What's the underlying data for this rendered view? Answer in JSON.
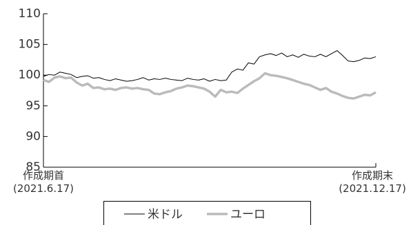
{
  "chart_data": {
    "type": "line",
    "categories": [
      "作成期首\n(2021.6.17)",
      null,
      null,
      null,
      null,
      null,
      null,
      null,
      null,
      null,
      null,
      null,
      null,
      null,
      null,
      null,
      null,
      null,
      null,
      null,
      null,
      null,
      null,
      null,
      null,
      null,
      null,
      null,
      null,
      null,
      null,
      null,
      null,
      null,
      null,
      null,
      null,
      null,
      null,
      null,
      null,
      null,
      null,
      null,
      null,
      null,
      null,
      null,
      null,
      null,
      null,
      null,
      null,
      null,
      null,
      null,
      null,
      null,
      null,
      null,
      "作成期末\n(2021.12.17)"
    ],
    "series": [
      {
        "name": "米ドル",
        "color": "#000000",
        "values": [
          99.8,
          100.1,
          100,
          100.5,
          100.3,
          100.1,
          99.6,
          99.8,
          99.9,
          99.5,
          99.6,
          99.3,
          99.1,
          99.4,
          99.2,
          99.0,
          99.1,
          99.3,
          99.6,
          99.2,
          99.4,
          99.3,
          99.5,
          99.3,
          99.2,
          99.1,
          99.5,
          99.3,
          99.2,
          99.4,
          99.0,
          99.3,
          99.1,
          99.2,
          100.5,
          101,
          100.8,
          102,
          101.8,
          103,
          103.3,
          103.5,
          103.2,
          103.6,
          103.0,
          103.3,
          102.9,
          103.4,
          103.1,
          103.0,
          103.4,
          103.0,
          103.5,
          104,
          103.2,
          102.3,
          102.2,
          102.4,
          102.8,
          102.7,
          103.0
        ]
      },
      {
        "name": "ユーロ",
        "color": "#bbbbbb",
        "values": [
          99.2,
          98.9,
          99.6,
          99.8,
          99.5,
          99.6,
          98.8,
          98.3,
          98.6,
          97.9,
          98.0,
          97.7,
          97.8,
          97.6,
          97.9,
          98.0,
          97.8,
          97.9,
          97.7,
          97.6,
          97.0,
          96.9,
          97.2,
          97.4,
          97.8,
          98.0,
          98.3,
          98.2,
          98.0,
          97.8,
          97.3,
          96.5,
          97.6,
          97.2,
          97.3,
          97.1,
          97.8,
          98.4,
          99.0,
          99.5,
          100.3,
          100.0,
          99.9,
          99.7,
          99.5,
          99.2,
          98.9,
          98.6,
          98.4,
          98.0,
          97.6,
          97.9,
          97.3,
          97.0,
          96.6,
          96.3,
          96.2,
          96.5,
          96.8,
          96.7,
          97.2
        ]
      }
    ],
    "ylim": [
      85,
      110
    ],
    "yticks": [
      85,
      90,
      95,
      100,
      105,
      110
    ]
  }
}
